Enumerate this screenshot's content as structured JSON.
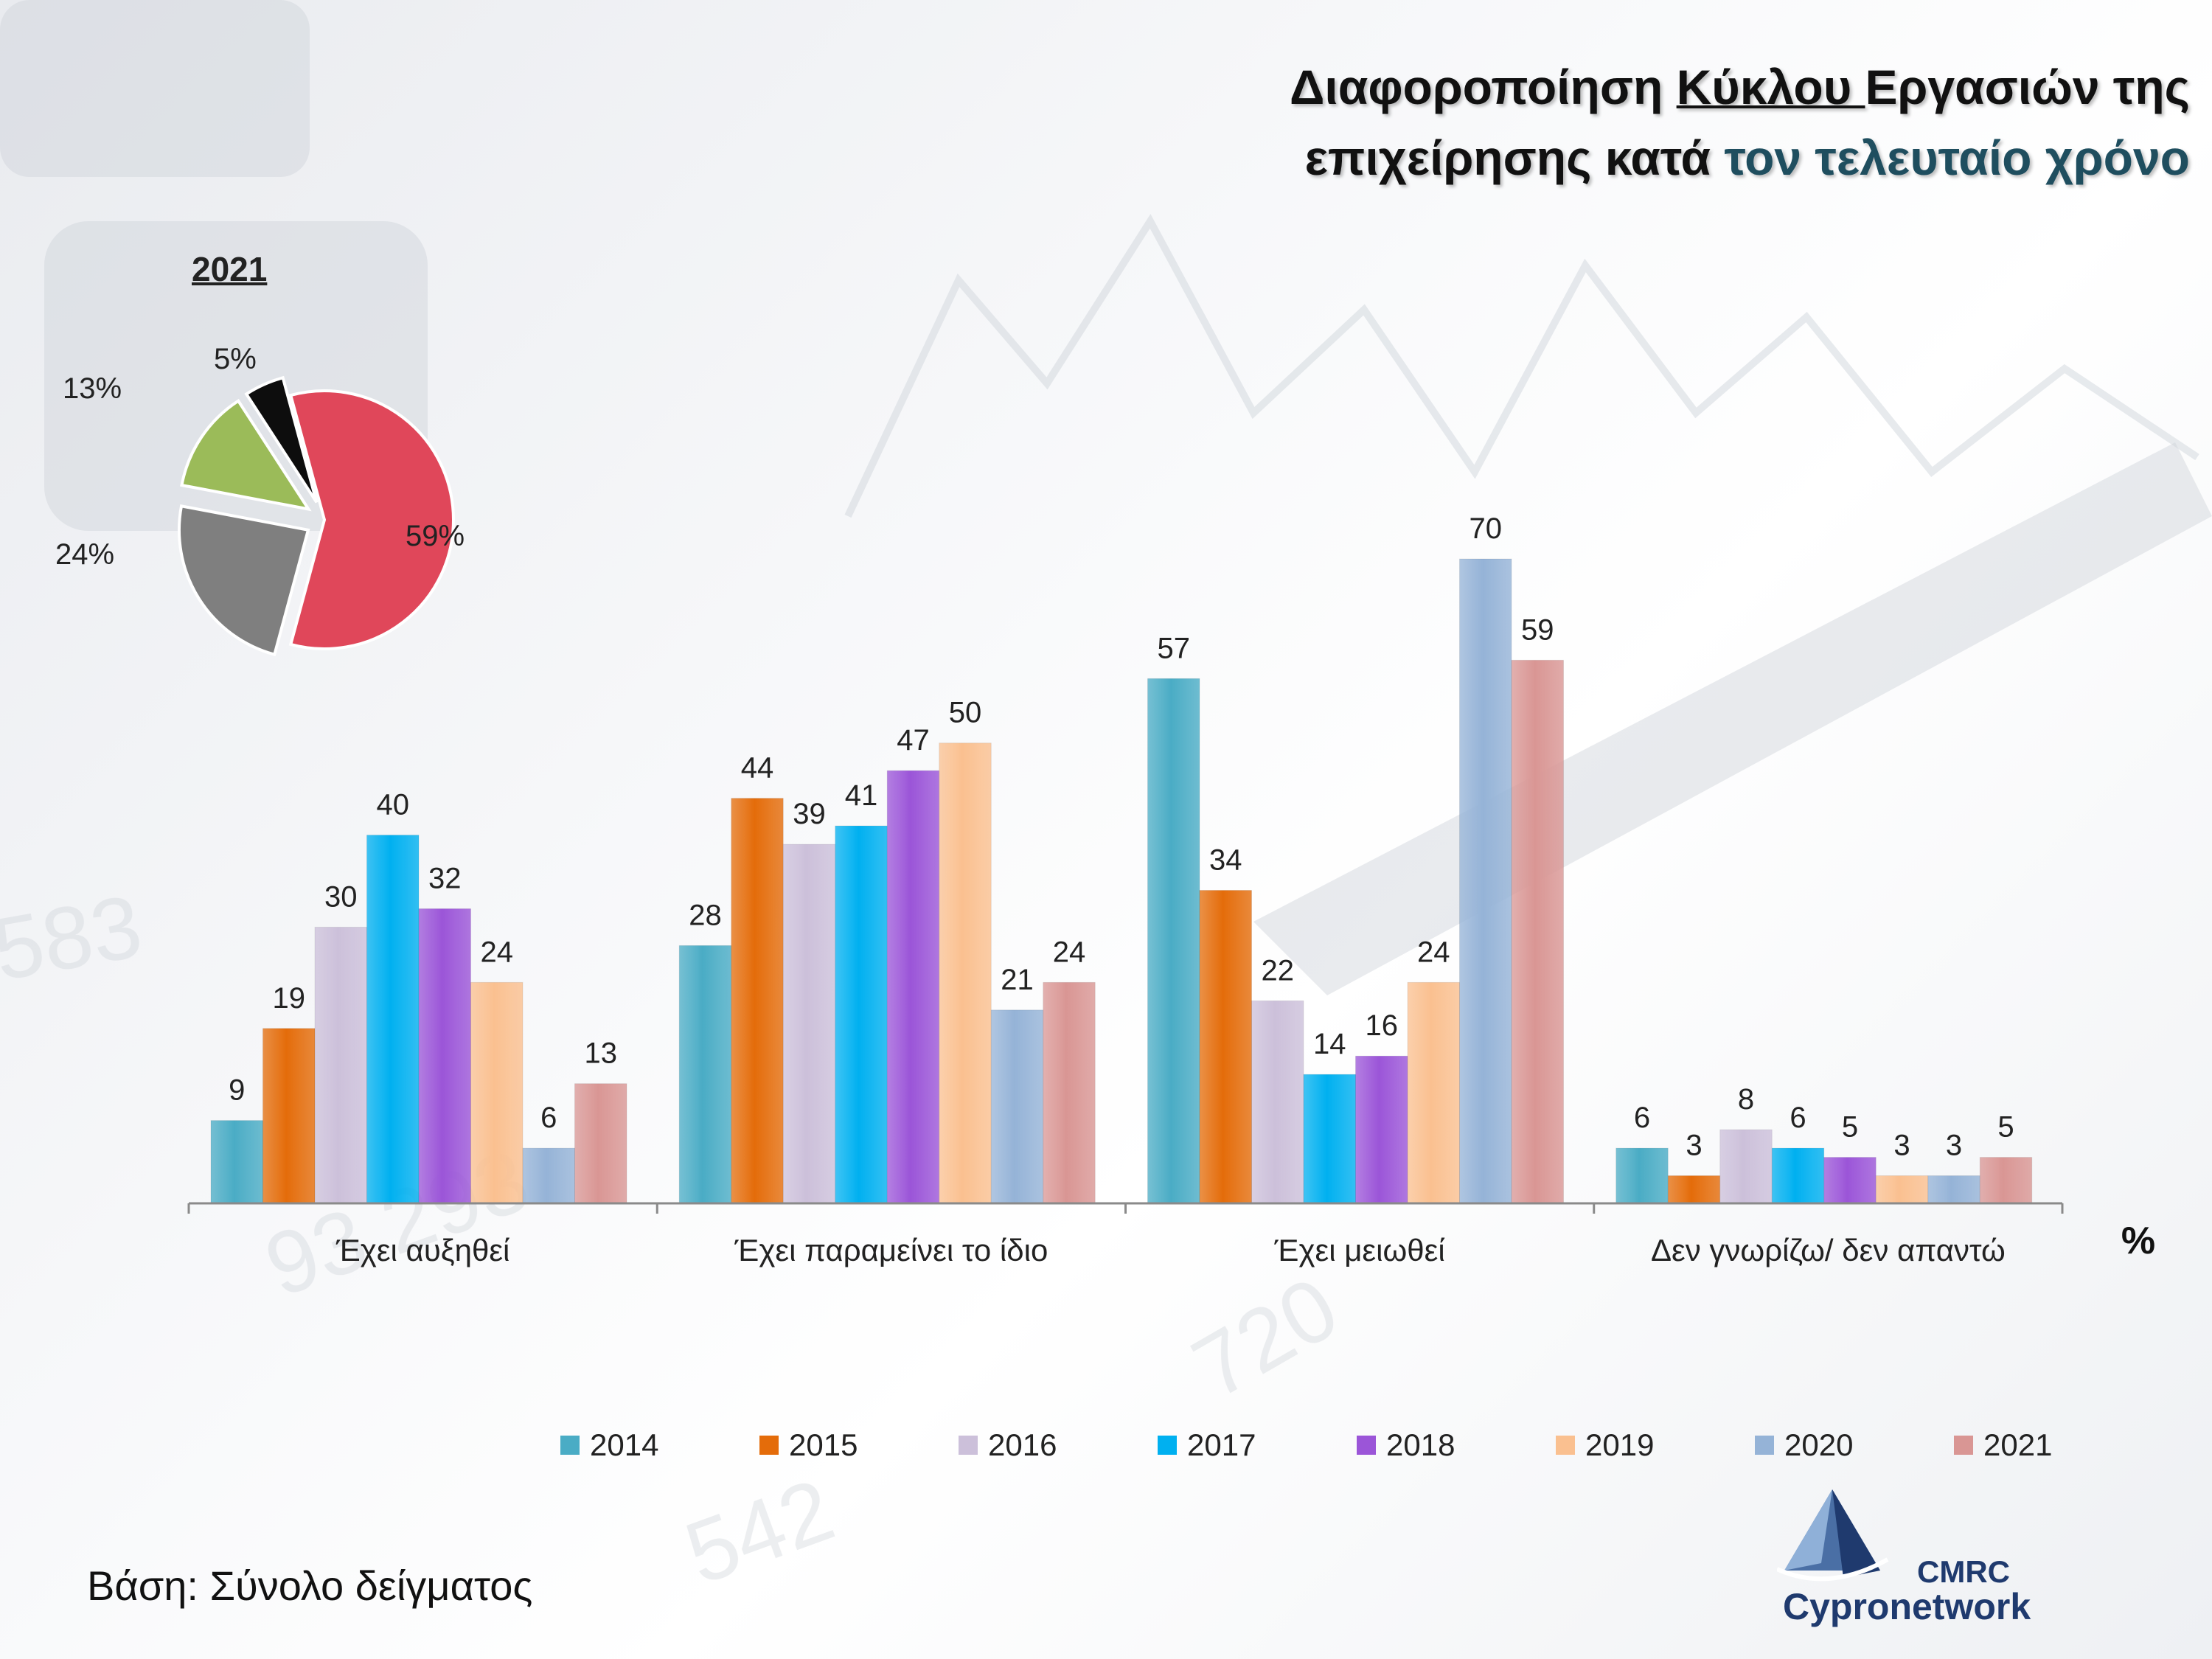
{
  "title": {
    "line1_part1": "Διαφοροποίηση ",
    "line1_underlined": "Κύκλου ",
    "line1_part2": "Εργασιών της",
    "line2_part1": "επιχείρησης κατά ",
    "line2_accent": "τον τελευταίο χρόνο"
  },
  "pie": {
    "title": "2021",
    "slices": [
      {
        "label": "59%",
        "value": 59,
        "color": "#e0475a"
      },
      {
        "label": "24%",
        "value": 24,
        "color": "#7f7f7f"
      },
      {
        "label": "13%",
        "value": 13,
        "color": "#9bbb59"
      },
      {
        "label": "5%",
        "value": 5,
        "color": "#0d0d0d"
      }
    ]
  },
  "unit_label": "%",
  "base_note": "Βάση: Σύνολο δείγματος",
  "logo": {
    "acronym": "CMRC",
    "name": "Cypronetwork"
  },
  "colors": {
    "2014": "#4aacc5",
    "2015": "#e46c0a",
    "2016": "#ccc0da",
    "2017": "#00b0f0",
    "2018": "#9b55d8",
    "2019": "#fac090",
    "2020": "#95b3d7",
    "2021": "#d99694"
  },
  "chart_data": {
    "type": "bar",
    "categories": [
      "Έχει αυξηθεί",
      "Έχει παραμείνει το ίδιο",
      "Έχει μειωθεί",
      "Δεν γνωρίζω/ δεν απαντώ"
    ],
    "series": [
      {
        "name": "2014",
        "values": [
          9,
          28,
          57,
          6
        ]
      },
      {
        "name": "2015",
        "values": [
          19,
          44,
          34,
          3
        ]
      },
      {
        "name": "2016",
        "values": [
          30,
          39,
          22,
          8
        ]
      },
      {
        "name": "2017",
        "values": [
          40,
          41,
          14,
          6
        ]
      },
      {
        "name": "2018",
        "values": [
          32,
          47,
          16,
          5
        ]
      },
      {
        "name": "2019",
        "values": [
          24,
          50,
          24,
          3
        ]
      },
      {
        "name": "2020",
        "values": [
          6,
          21,
          70,
          3
        ]
      },
      {
        "name": "2021",
        "values": [
          13,
          24,
          59,
          5
        ]
      }
    ],
    "ylim": [
      0,
      70
    ],
    "legend_position": "bottom",
    "grid": false
  }
}
